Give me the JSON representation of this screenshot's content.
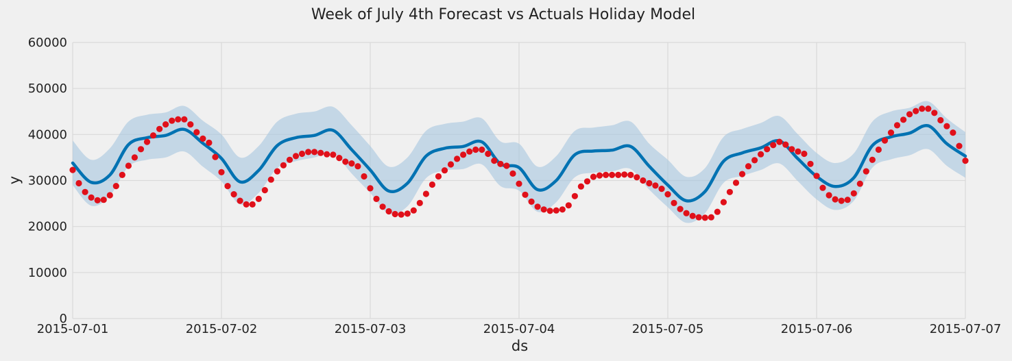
{
  "chart_data": {
    "type": "line",
    "title": "Week of July 4th Forecast vs Actuals Holiday Model",
    "xlabel": "ds",
    "ylabel": "y",
    "xlim": [
      "2015-07-01",
      "2015-07-07"
    ],
    "ylim": [
      0,
      60000
    ],
    "x_tick_labels": [
      "2015-07-01",
      "2015-07-02",
      "2015-07-03",
      "2015-07-04",
      "2015-07-05",
      "2015-07-06",
      "2015-07-07"
    ],
    "y_tick_labels": [
      "0",
      "10000",
      "20000",
      "30000",
      "40000",
      "50000",
      "60000"
    ],
    "y_ticks": [
      0,
      10000,
      20000,
      30000,
      40000,
      50000,
      60000
    ],
    "grid": true,
    "colors": {
      "forecast": "#0072b2",
      "interval": "#a7c7df",
      "actual": "#e0101a",
      "background": "#f0f0f0",
      "grid": "#d9d9d9"
    },
    "series": [
      {
        "kind": "forecast",
        "x": [
          "2015-07-01 00:00",
          "2015-07-01 03:00",
          "2015-07-01 06:00",
          "2015-07-01 09:00",
          "2015-07-01 12:00",
          "2015-07-01 15:00",
          "2015-07-01 18:00",
          "2015-07-01 21:00",
          "2015-07-02 00:00",
          "2015-07-02 03:00",
          "2015-07-02 06:00",
          "2015-07-02 09:00",
          "2015-07-02 12:00",
          "2015-07-02 15:00",
          "2015-07-02 18:00",
          "2015-07-02 21:00",
          "2015-07-03 00:00",
          "2015-07-03 03:00",
          "2015-07-03 06:00",
          "2015-07-03 09:00",
          "2015-07-03 12:00",
          "2015-07-03 15:00",
          "2015-07-03 18:00",
          "2015-07-03 21:00",
          "2015-07-04 00:00",
          "2015-07-04 03:00",
          "2015-07-04 06:00",
          "2015-07-04 09:00",
          "2015-07-04 12:00",
          "2015-07-04 15:00",
          "2015-07-04 18:00",
          "2015-07-04 21:00",
          "2015-07-05 00:00",
          "2015-07-05 03:00",
          "2015-07-05 06:00",
          "2015-07-05 09:00",
          "2015-07-05 12:00",
          "2015-07-05 15:00",
          "2015-07-05 18:00",
          "2015-07-05 21:00",
          "2015-07-06 00:00",
          "2015-07-06 03:00",
          "2015-07-06 06:00",
          "2015-07-06 09:00",
          "2015-07-06 12:00",
          "2015-07-06 15:00",
          "2015-07-06 18:00",
          "2015-07-06 21:00",
          "2015-07-07 00:00"
        ],
        "y": [
          33800,
          29600,
          31200,
          37800,
          39300,
          39800,
          41100,
          38100,
          34800,
          29700,
          32200,
          37600,
          39300,
          39800,
          40900,
          36700,
          32300,
          27700,
          29400,
          35300,
          37000,
          37400,
          38400,
          33600,
          32800,
          28000,
          30000,
          35600,
          36400,
          36600,
          37400,
          33100,
          29000,
          25600,
          27600,
          34200,
          36000,
          37100,
          38600,
          34700,
          30900,
          28700,
          30600,
          37600,
          39500,
          40300,
          41900,
          38000,
          35300
        ]
      },
      {
        "kind": "interval_upper",
        "y": [
          38700,
          34500,
          37000,
          42800,
          44300,
          44800,
          46200,
          43000,
          40000,
          35000,
          37500,
          42800,
          44500,
          45000,
          46000,
          42000,
          37500,
          33000,
          35000,
          40800,
          42300,
          42800,
          43500,
          38500,
          38000,
          33000,
          35300,
          40800,
          41500,
          42000,
          42800,
          38000,
          34500,
          30800,
          32700,
          39500,
          41200,
          42500,
          44000,
          40000,
          36000,
          33800,
          35900,
          42800,
          45000,
          45800,
          47200,
          43500,
          40500
        ]
      },
      {
        "kind": "interval_lower",
        "y": [
          29000,
          24500,
          26700,
          33000,
          34500,
          35000,
          36300,
          33000,
          29800,
          24800,
          27300,
          32700,
          34200,
          35000,
          36000,
          31500,
          27300,
          22800,
          24400,
          30500,
          32200,
          32500,
          33500,
          28800,
          27800,
          23200,
          25300,
          30700,
          31700,
          32000,
          32500,
          28000,
          24200,
          20800,
          22900,
          29500,
          31000,
          32300,
          33700,
          29800,
          25900,
          23600,
          25600,
          32800,
          34600,
          35500,
          36800,
          33200,
          30600
        ]
      },
      {
        "kind": "actual",
        "x_start": "2015-07-01 00:00",
        "x_step_hours": 1,
        "y": [
          32300,
          29400,
          27500,
          26300,
          25700,
          25800,
          26800,
          28800,
          31200,
          33200,
          35000,
          36800,
          38400,
          39800,
          41200,
          42200,
          43000,
          43300,
          43300,
          42200,
          40500,
          39100,
          38200,
          35100,
          31800,
          28800,
          27000,
          25600,
          24800,
          24800,
          26000,
          27900,
          30200,
          32000,
          33300,
          34500,
          35300,
          35800,
          36200,
          36200,
          36000,
          35700,
          35600,
          34900,
          34100,
          33700,
          33100,
          30900,
          28300,
          26000,
          24300,
          23300,
          22700,
          22600,
          22800,
          23500,
          25100,
          27100,
          29100,
          30900,
          32200,
          33500,
          34700,
          35600,
          36300,
          36700,
          36700,
          35800,
          34300,
          33600,
          33200,
          31500,
          29300,
          26900,
          25400,
          24300,
          23700,
          23400,
          23500,
          23700,
          24600,
          26600,
          28700,
          29800,
          30800,
          31100,
          31200,
          31200,
          31200,
          31300,
          31200,
          30700,
          30000,
          29400,
          28900,
          28200,
          27000,
          25100,
          23800,
          22900,
          22300,
          22000,
          21900,
          22000,
          23200,
          25300,
          27500,
          29500,
          31400,
          33100,
          34400,
          35700,
          36800,
          37700,
          38400,
          37800,
          36800,
          36300,
          35800,
          33600,
          31000,
          28400,
          26800,
          25900,
          25600,
          25800,
          27200,
          29300,
          32000,
          34500,
          36700,
          38700,
          40400,
          42000,
          43200,
          44400,
          45100,
          45600,
          45600,
          44700,
          43100,
          41800,
          40400,
          37500,
          34300
        ]
      }
    ]
  }
}
